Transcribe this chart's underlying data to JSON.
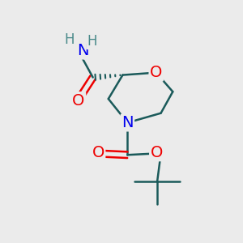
{
  "bg_color": "#ebebeb",
  "atom_colors": {
    "C": "#1a5a5a",
    "N": "#0000ee",
    "O": "#ee0000",
    "H": "#4a8a8a"
  },
  "bond_color": "#1a5a5a",
  "bond_width": 1.8,
  "font_size_atoms": 13
}
